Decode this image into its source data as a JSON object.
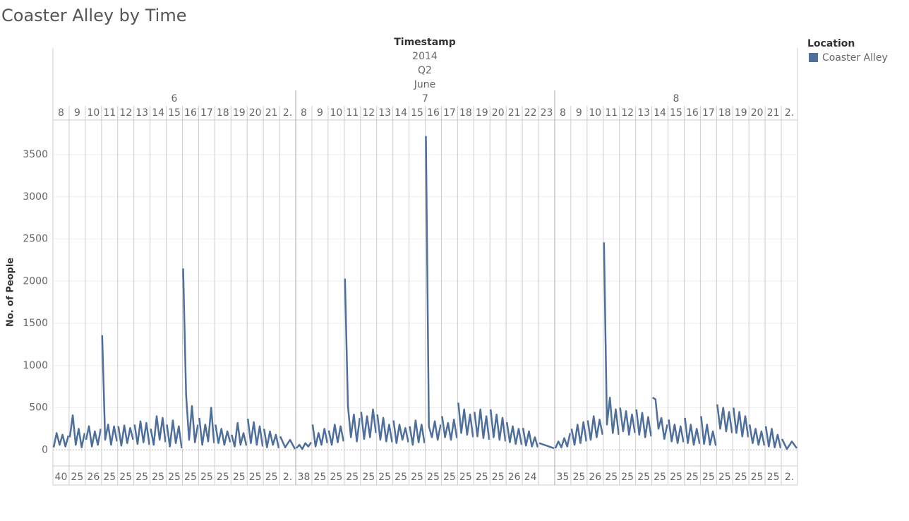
{
  "chart_data": {
    "type": "line",
    "title": "Coaster Alley by Time",
    "column_headers": [
      "Timestamp",
      "2014",
      "Q2",
      "June"
    ],
    "y_label": "No. of People",
    "ylim": [
      -190,
      3910
    ],
    "yticks": [
      0,
      500,
      1000,
      1500,
      2000,
      2500,
      3000,
      3500
    ],
    "grid": true,
    "legend": {
      "title": "Location",
      "position": "right"
    },
    "series": [
      {
        "name": "Coaster Alley",
        "color": "#4e6f9c"
      }
    ],
    "days": [
      {
        "label": "6",
        "hours": [
          "8",
          "9",
          "10",
          "11",
          "12",
          "13",
          "14",
          "15",
          "16",
          "17",
          "18",
          "19",
          "20",
          "21",
          "2."
        ],
        "counts": [
          "40",
          "25",
          "26",
          "25",
          "25",
          "25",
          "25",
          "25",
          "25",
          "25",
          "25",
          "25",
          "25",
          "25",
          "2."
        ],
        "values": [
          [
            30,
            200,
            60,
            180,
            40,
            170
          ],
          [
            150,
            410,
            60,
            250,
            30,
            200
          ],
          [
            120,
            280,
            40,
            220,
            60,
            250
          ],
          [
            1360,
            120,
            300,
            60,
            280,
            100
          ],
          [
            280,
            50,
            290,
            80,
            260,
            120
          ],
          [
            300,
            70,
            340,
            90,
            320,
            60
          ],
          [
            250,
            60,
            400,
            120,
            380,
            90
          ],
          [
            300,
            40,
            350,
            80,
            280,
            20
          ],
          [
            2150,
            650,
            120,
            520,
            90,
            300
          ],
          [
            380,
            60,
            300,
            100,
            500,
            80
          ],
          [
            300,
            80,
            250,
            60,
            220,
            90
          ],
          [
            180,
            40,
            320,
            60,
            200,
            50
          ],
          [
            370,
            80,
            330,
            60,
            280,
            40
          ],
          [
            250,
            30,
            220,
            60,
            180,
            20
          ],
          [
            160,
            30,
            120,
            10
          ]
        ]
      },
      {
        "label": "7",
        "hours": [
          "8",
          "9",
          "10",
          "11",
          "12",
          "13",
          "14",
          "15",
          "16",
          "17",
          "18",
          "19",
          "20",
          "21",
          "22",
          "23"
        ],
        "counts": [
          "38",
          "25",
          "25",
          "25",
          "25",
          "25",
          "25",
          "25",
          "25",
          "25",
          "25",
          "25",
          "25",
          "26",
          "24",
          null
        ],
        "values": [
          [
            20,
            60,
            10,
            80,
            40,
            90
          ],
          [
            300,
            40,
            200,
            60,
            250,
            80
          ],
          [
            230,
            60,
            300,
            90,
            280,
            100
          ],
          [
            2030,
            520,
            150,
            420,
            100,
            380
          ],
          [
            450,
            130,
            400,
            150,
            480,
            200
          ],
          [
            420,
            120,
            380,
            100,
            300,
            90
          ],
          [
            350,
            80,
            300,
            120,
            260,
            90
          ],
          [
            280,
            60,
            350,
            90,
            300,
            80
          ],
          [
            3720,
            280,
            150,
            340,
            120,
            300
          ],
          [
            400,
            150,
            320,
            120,
            360,
            140
          ],
          [
            560,
            200,
            480,
            180,
            420,
            150
          ],
          [
            450,
            160,
            480,
            140,
            400,
            120
          ],
          [
            480,
            150,
            420,
            120,
            380,
            100
          ],
          [
            330,
            90,
            280,
            70,
            250,
            60
          ],
          [
            260,
            50,
            220,
            40,
            150,
            30
          ],
          [
            80,
            20
          ]
        ]
      },
      {
        "label": "8",
        "hours": [
          "8",
          "9",
          "10",
          "11",
          "12",
          "13",
          "14",
          "15",
          "16",
          "17",
          "18",
          "19",
          "20",
          "21",
          "2."
        ],
        "counts": [
          "35",
          "25",
          "26",
          "25",
          "25",
          "25",
          "25",
          "25",
          "25",
          "25",
          "25",
          "25",
          "25",
          "25",
          "2."
        ],
        "values": [
          [
            20,
            100,
            30,
            140,
            40,
            200
          ],
          [
            250,
            60,
            300,
            80,
            330,
            100
          ],
          [
            350,
            120,
            400,
            150,
            360,
            180
          ],
          [
            2460,
            300,
            620,
            200,
            480,
            180
          ],
          [
            500,
            220,
            460,
            180,
            420,
            200
          ],
          [
            480,
            180,
            440,
            150,
            390,
            160
          ],
          [
            620,
            600,
            250,
            380,
            130,
            300
          ],
          [
            360,
            100,
            300,
            80,
            280,
            90
          ],
          [
            380,
            80,
            300,
            60,
            250,
            70
          ],
          [
            400,
            70,
            300,
            60,
            220,
            50
          ],
          [
            540,
            250,
            500,
            220,
            450,
            200
          ],
          [
            500,
            200,
            450,
            160,
            400,
            150
          ],
          [
            300,
            80,
            250,
            60,
            220,
            50
          ],
          [
            280,
            40,
            250,
            30,
            180,
            20
          ],
          [
            130,
            10,
            100,
            20
          ]
        ]
      }
    ]
  }
}
